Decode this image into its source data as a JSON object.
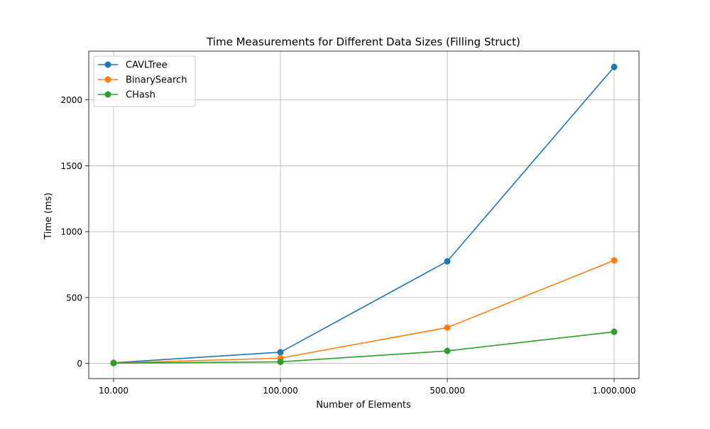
{
  "chart_data": {
    "type": "line",
    "title": "Time Measurements for Different Data Sizes (Filling Struct)",
    "xlabel": "Number of Elements",
    "ylabel": "Time (ms)",
    "categories": [
      "10.000",
      "100.000",
      "500.000",
      "1.000.000"
    ],
    "ylim": [
      -115,
      2370
    ],
    "yticks": [
      0,
      500,
      1000,
      1500,
      2000
    ],
    "grid": true,
    "legend_position": "top-left",
    "series": [
      {
        "name": "CAVLTree",
        "color": "#1f77b4",
        "values": [
          5,
          85,
          775,
          2250
        ]
      },
      {
        "name": "BinarySearch",
        "color": "#ff7f0e",
        "values": [
          3,
          40,
          272,
          782
        ]
      },
      {
        "name": "CHash",
        "color": "#2ca02c",
        "values": [
          2,
          12,
          95,
          240
        ]
      }
    ]
  }
}
